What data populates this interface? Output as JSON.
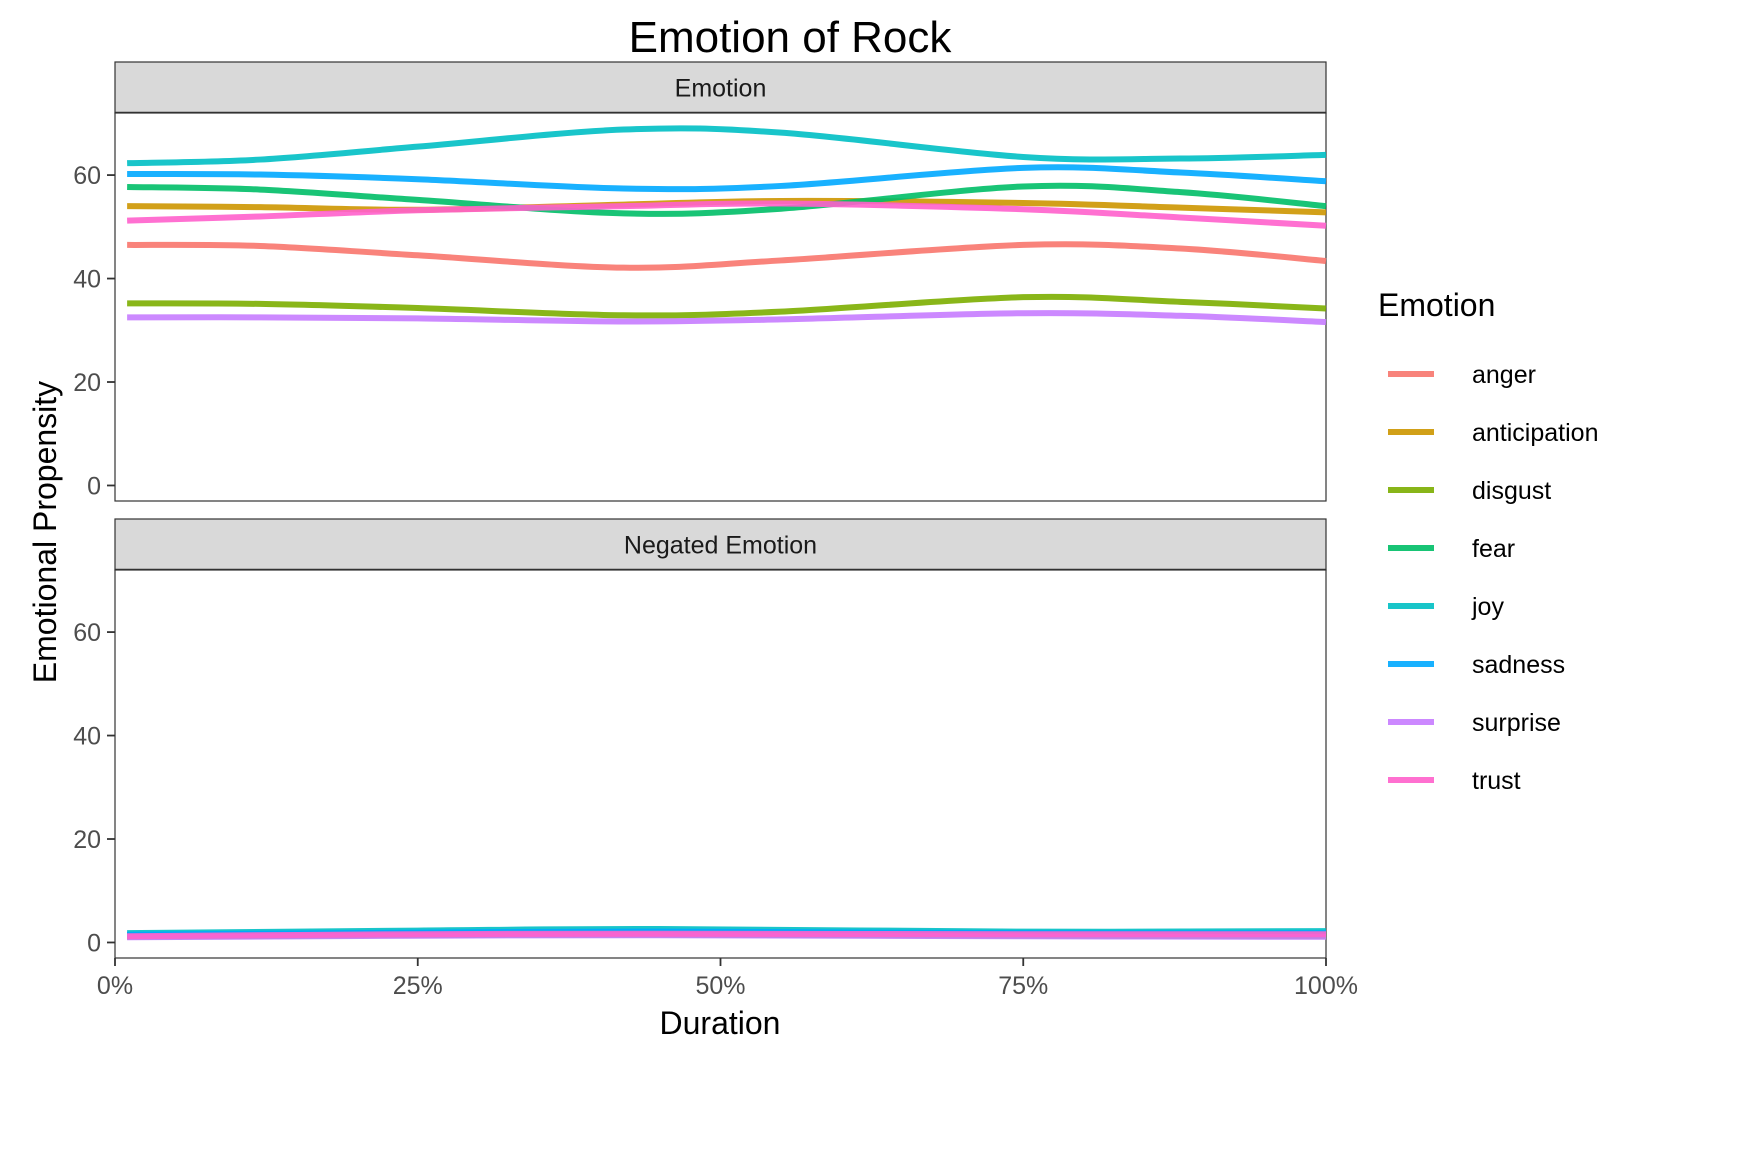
{
  "chart_data": {
    "type": "line",
    "title": "Emotion of Rock",
    "xlabel": "Duration",
    "ylabel": "Emotional Propensity",
    "xlim": [
      0,
      100
    ],
    "ylim": [
      -3,
      72
    ],
    "x_ticks": [
      "0%",
      "25%",
      "50%",
      "75%",
      "100%"
    ],
    "x_tick_values": [
      0,
      25,
      50,
      75,
      100
    ],
    "y_ticks": [
      "0",
      "20",
      "40",
      "60"
    ],
    "y_tick_values": [
      0,
      20,
      40,
      60
    ],
    "grid": false,
    "legend": {
      "title": "Emotion",
      "position": "right"
    },
    "facets": [
      {
        "label": "Emotion",
        "series": [
          {
            "name": "anger",
            "color": "#F8766D",
            "x": [
              1,
              12,
              25,
              42,
              55,
              75,
              88,
              100
            ],
            "values": [
              46.5,
              46.3,
              44.5,
              42.1,
              43.5,
              46.5,
              45.8,
              43.4
            ]
          },
          {
            "name": "anticipation",
            "color": "#CD9600",
            "x": [
              1,
              12,
              25,
              42,
              55,
              75,
              88,
              100
            ],
            "values": [
              54.0,
              53.8,
              53.3,
              54.3,
              55.0,
              54.6,
              53.7,
              52.8
            ]
          },
          {
            "name": "disgust",
            "color": "#7CAE00",
            "x": [
              1,
              12,
              25,
              42,
              55,
              75,
              88,
              100
            ],
            "values": [
              35.2,
              35.1,
              34.3,
              32.9,
              33.6,
              36.4,
              35.5,
              34.2
            ]
          },
          {
            "name": "fear",
            "color": "#00BE67",
            "x": [
              1,
              12,
              25,
              42,
              55,
              75,
              88,
              100
            ],
            "values": [
              57.7,
              57.2,
              55.2,
              52.6,
              53.5,
              57.8,
              56.7,
              54.0
            ]
          },
          {
            "name": "joy",
            "color": "#00BFC4",
            "x": [
              1,
              12,
              25,
              42,
              55,
              75,
              88,
              100
            ],
            "values": [
              62.3,
              63.0,
              65.5,
              68.8,
              68.2,
              63.5,
              63.2,
              63.9
            ]
          },
          {
            "name": "sadness",
            "color": "#00A9FF",
            "x": [
              1,
              12,
              25,
              42,
              55,
              75,
              88,
              100
            ],
            "values": [
              60.2,
              60.1,
              59.2,
              57.4,
              57.9,
              61.4,
              60.5,
              58.8
            ]
          },
          {
            "name": "surprise",
            "color": "#C77CFF",
            "x": [
              1,
              12,
              25,
              42,
              55,
              75,
              88,
              100
            ],
            "values": [
              32.5,
              32.5,
              32.3,
              31.7,
              32.1,
              33.3,
              32.8,
              31.6
            ]
          },
          {
            "name": "trust",
            "color": "#FF61CC",
            "x": [
              1,
              12,
              25,
              42,
              55,
              75,
              88,
              100
            ],
            "values": [
              51.2,
              52.0,
              53.2,
              54.0,
              54.5,
              53.4,
              51.8,
              50.2
            ]
          }
        ]
      },
      {
        "label": "Negated Emotion",
        "series": [
          {
            "name": "anger",
            "color": "#F8766D",
            "x": [
              1,
              25,
              45,
              75,
              100
            ],
            "values": [
              1.2,
              1.6,
              1.8,
              1.5,
              1.4
            ]
          },
          {
            "name": "anticipation",
            "color": "#CD9600",
            "x": [
              1,
              25,
              45,
              75,
              100
            ],
            "values": [
              1.3,
              1.6,
              1.7,
              1.5,
              1.5
            ]
          },
          {
            "name": "disgust",
            "color": "#7CAE00",
            "x": [
              1,
              25,
              45,
              75,
              100
            ],
            "values": [
              1.1,
              1.4,
              1.5,
              1.3,
              1.2
            ]
          },
          {
            "name": "fear",
            "color": "#00BE67",
            "x": [
              1,
              25,
              45,
              75,
              100
            ],
            "values": [
              1.4,
              1.8,
              2.0,
              1.7,
              1.6
            ]
          },
          {
            "name": "joy",
            "color": "#00BFC4",
            "x": [
              1,
              25,
              45,
              75,
              100
            ],
            "values": [
              1.8,
              2.3,
              2.6,
              2.1,
              2.2
            ]
          },
          {
            "name": "sadness",
            "color": "#00A9FF",
            "x": [
              1,
              25,
              45,
              75,
              100
            ],
            "values": [
              1.5,
              1.9,
              2.1,
              1.8,
              1.8
            ]
          },
          {
            "name": "surprise",
            "color": "#C77CFF",
            "x": [
              1,
              25,
              45,
              75,
              100
            ],
            "values": [
              1.0,
              1.3,
              1.4,
              1.2,
              1.1
            ]
          },
          {
            "name": "trust",
            "color": "#FF61CC",
            "x": [
              1,
              25,
              45,
              75,
              100
            ],
            "values": [
              1.2,
              1.6,
              1.7,
              1.6,
              1.6
            ]
          }
        ]
      }
    ]
  }
}
